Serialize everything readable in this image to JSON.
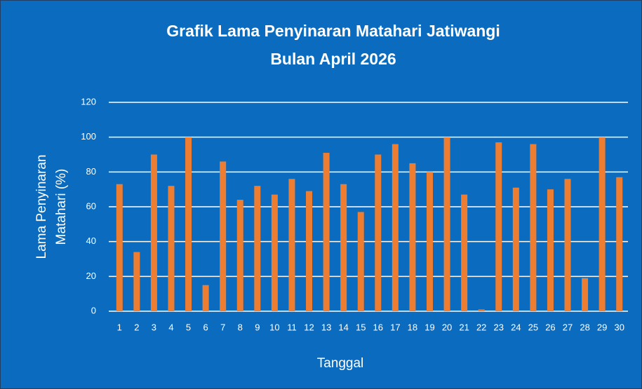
{
  "chart_data": {
    "type": "bar",
    "title": [
      "Grafik Lama Penyinaran Matahari Jatiwangi",
      "Bulan April 2026"
    ],
    "ylabel": [
      "Lama Penyinaran",
      "Matahari (%)"
    ],
    "xlabel": "Tanggal",
    "categories": [
      "1",
      "2",
      "3",
      "4",
      "5",
      "6",
      "7",
      "8",
      "9",
      "10",
      "11",
      "12",
      "13",
      "14",
      "15",
      "16",
      "17",
      "18",
      "19",
      "20",
      "21",
      "22",
      "23",
      "24",
      "25",
      "26",
      "27",
      "28",
      "29",
      "30"
    ],
    "values": [
      73,
      34,
      90,
      72,
      100,
      15,
      86,
      64,
      72,
      67,
      76,
      69,
      91,
      73,
      57,
      90,
      96,
      85,
      80,
      100,
      67,
      1,
      97,
      71,
      96,
      70,
      76,
      19,
      100,
      77
    ],
    "color": "#ed7d31",
    "ylim": [
      0,
      120
    ],
    "yticks": [
      0,
      20,
      40,
      60,
      80,
      100,
      120
    ],
    "grid": true
  }
}
